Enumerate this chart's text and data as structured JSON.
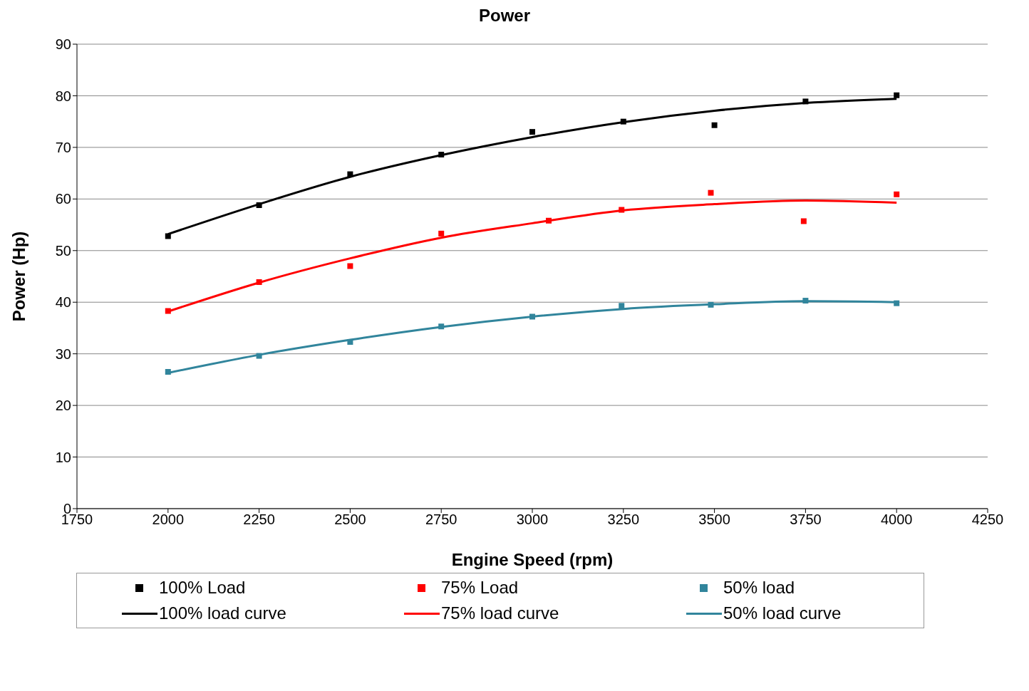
{
  "chart_data": {
    "type": "scatter",
    "title": "Power",
    "xlabel": "Engine Speed (rpm)",
    "ylabel": "Power (Hp)",
    "xlim": [
      1750,
      4250
    ],
    "xticks": [
      1750,
      2000,
      2250,
      2500,
      2750,
      3000,
      3250,
      3500,
      3750,
      4000,
      4250
    ],
    "ylim": [
      0,
      90
    ],
    "yticks": [
      0,
      10,
      20,
      30,
      40,
      50,
      60,
      70,
      80,
      90
    ],
    "grid": "y",
    "legend": "bottom",
    "series": [
      {
        "name": "100% Load",
        "marker": "square",
        "color": "#000000",
        "x": [
          2000,
          2250,
          2500,
          2750,
          3000,
          3250,
          3500,
          3750,
          4000
        ],
        "values": [
          52.8,
          58.8,
          64.8,
          68.6,
          73.0,
          75.0,
          74.3,
          78.9,
          80.1
        ]
      },
      {
        "name": "75% Load",
        "marker": "square",
        "color": "#ff0000",
        "x": [
          2000,
          2250,
          2500,
          2750,
          3045,
          3245,
          3490,
          3745,
          4000
        ],
        "values": [
          38.3,
          43.9,
          47.0,
          53.3,
          55.8,
          57.9,
          61.2,
          55.7,
          60.9
        ]
      },
      {
        "name": "50% load",
        "marker": "square",
        "color": "#31859c",
        "x": [
          2000,
          2250,
          2500,
          2750,
          3000,
          3245,
          3490,
          3750,
          4000
        ],
        "values": [
          26.5,
          29.6,
          32.3,
          35.3,
          37.2,
          39.3,
          39.5,
          40.3,
          39.8
        ]
      },
      {
        "name": "100% load curve",
        "type": "line",
        "marker": "none",
        "color": "#000000",
        "x": [
          2000,
          2250,
          2500,
          2750,
          3000,
          3250,
          3500,
          3750,
          4000
        ],
        "values": [
          53.2,
          59.0,
          64.3,
          68.5,
          72.0,
          74.9,
          77.1,
          78.6,
          79.4
        ]
      },
      {
        "name": "75% load curve",
        "type": "line",
        "marker": "none",
        "color": "#ff0000",
        "x": [
          2000,
          2250,
          2500,
          2750,
          3000,
          3250,
          3500,
          3750,
          4000
        ],
        "values": [
          38.2,
          43.8,
          48.5,
          52.5,
          55.3,
          57.8,
          59.0,
          59.7,
          59.3
        ]
      },
      {
        "name": "50% load curve",
        "type": "line",
        "marker": "none",
        "color": "#31859c",
        "x": [
          2000,
          2250,
          2500,
          2750,
          3000,
          3250,
          3500,
          3750,
          4000
        ],
        "values": [
          26.3,
          29.8,
          32.7,
          35.2,
          37.2,
          38.7,
          39.6,
          40.2,
          40.0
        ]
      }
    ]
  }
}
